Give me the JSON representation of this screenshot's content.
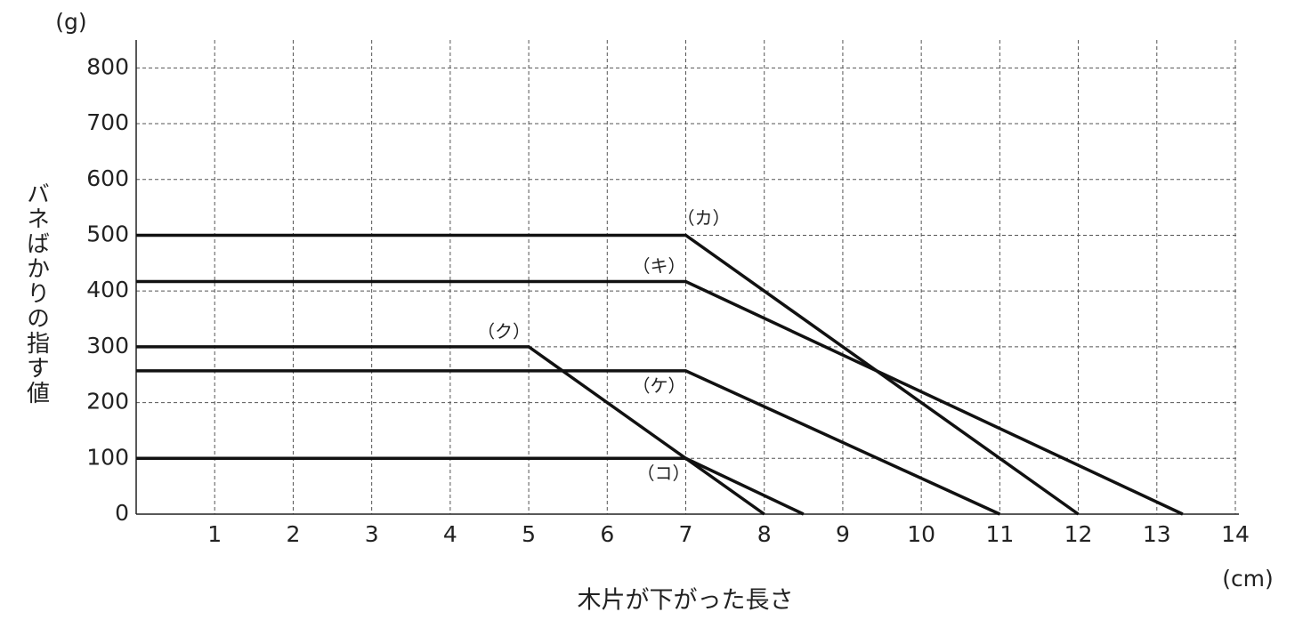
{
  "chart_data": {
    "type": "line",
    "y_label": "バネばかりの指す値",
    "y_unit": "(g)",
    "x_label": "木片が下がった長さ",
    "x_unit": "(cm)",
    "xlim": [
      0,
      14
    ],
    "ylim": [
      0,
      850
    ],
    "xticks": [
      1,
      2,
      3,
      4,
      5,
      6,
      7,
      8,
      9,
      10,
      11,
      12,
      13,
      14
    ],
    "yticks": [
      0,
      100,
      200,
      300,
      400,
      500,
      600,
      700,
      800
    ],
    "grid": true,
    "series": [
      {
        "name": "（カ）",
        "color": "#111111",
        "x": [
          0,
          7,
          12
        ],
        "values": [
          500,
          500,
          0
        ]
      },
      {
        "name": "（キ）",
        "color": "#111111",
        "x": [
          0,
          7,
          13.33
        ],
        "values": [
          417,
          417,
          0
        ]
      },
      {
        "name": "（ク）",
        "color": "#111111",
        "x": [
          0,
          5,
          8
        ],
        "values": [
          300,
          300,
          0
        ]
      },
      {
        "name": "（ケ）",
        "color": "#111111",
        "x": [
          0,
          7,
          11
        ],
        "values": [
          257,
          257,
          0
        ]
      },
      {
        "name": "（コ）",
        "color": "#111111",
        "x": [
          0,
          7,
          8.5
        ],
        "values": [
          100,
          100,
          0
        ]
      }
    ]
  }
}
